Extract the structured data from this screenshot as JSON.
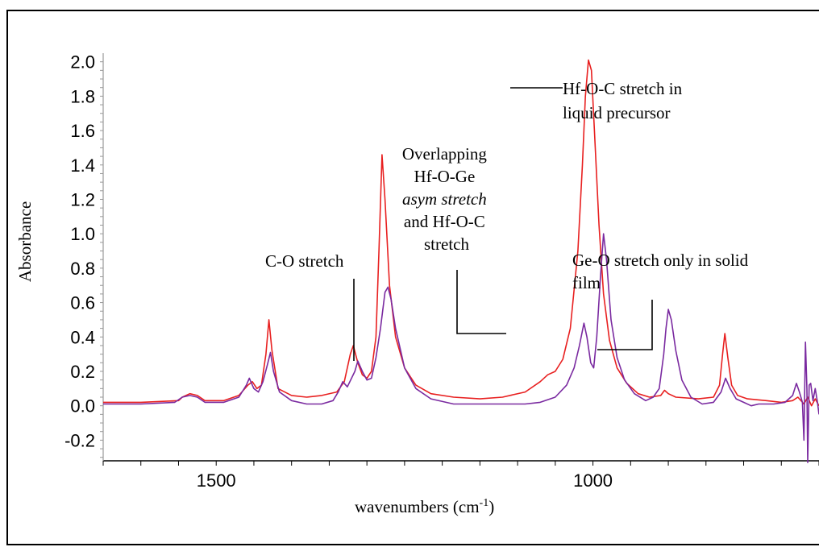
{
  "chart_data": {
    "type": "line",
    "xlabel": "wavenumbers (cm",
    "xlabel_sup": "-1",
    "xlabel_end": ")",
    "ylabel": "Absorbance",
    "xlim": [
      1650,
      700
    ],
    "ylim": [
      -0.32,
      2.05
    ],
    "x_ticks": [
      1500,
      1000
    ],
    "y_ticks": [
      -0.2,
      0.0,
      0.2,
      0.4,
      0.6,
      0.8,
      1.0,
      1.2,
      1.4,
      1.6,
      1.8,
      2.0
    ],
    "y_tick_labels": [
      "-0.2",
      "0.0",
      "0.2",
      "0.4",
      "0.6",
      "0.8",
      "1.0",
      "1.2",
      "1.4",
      "1.6",
      "1.8",
      "2.0"
    ],
    "grid": false,
    "legend": "none",
    "series": [
      {
        "color": "#e82020",
        "points": [
          [
            1650,
            0.02
          ],
          [
            1600,
            0.02
          ],
          [
            1550,
            0.03
          ],
          [
            1545,
            0.05
          ],
          [
            1535,
            0.07
          ],
          [
            1525,
            0.06
          ],
          [
            1515,
            0.03
          ],
          [
            1490,
            0.03
          ],
          [
            1470,
            0.06
          ],
          [
            1458,
            0.12
          ],
          [
            1452,
            0.14
          ],
          [
            1446,
            0.1
          ],
          [
            1440,
            0.12
          ],
          [
            1434,
            0.3
          ],
          [
            1430,
            0.5
          ],
          [
            1426,
            0.32
          ],
          [
            1418,
            0.1
          ],
          [
            1400,
            0.06
          ],
          [
            1380,
            0.05
          ],
          [
            1360,
            0.06
          ],
          [
            1340,
            0.08
          ],
          [
            1330,
            0.14
          ],
          [
            1322,
            0.3
          ],
          [
            1318,
            0.35
          ],
          [
            1312,
            0.25
          ],
          [
            1306,
            0.18
          ],
          [
            1300,
            0.16
          ],
          [
            1294,
            0.2
          ],
          [
            1288,
            0.4
          ],
          [
            1284,
            0.9
          ],
          [
            1280,
            1.46
          ],
          [
            1276,
            1.2
          ],
          [
            1270,
            0.7
          ],
          [
            1262,
            0.4
          ],
          [
            1250,
            0.22
          ],
          [
            1235,
            0.12
          ],
          [
            1215,
            0.07
          ],
          [
            1185,
            0.05
          ],
          [
            1150,
            0.04
          ],
          [
            1120,
            0.05
          ],
          [
            1090,
            0.08
          ],
          [
            1070,
            0.14
          ],
          [
            1060,
            0.18
          ],
          [
            1050,
            0.2
          ],
          [
            1040,
            0.27
          ],
          [
            1030,
            0.45
          ],
          [
            1020,
            0.9
          ],
          [
            1014,
            1.4
          ],
          [
            1010,
            1.8
          ],
          [
            1006,
            2.01
          ],
          [
            1002,
            1.95
          ],
          [
            998,
            1.6
          ],
          [
            992,
            1.05
          ],
          [
            986,
            0.65
          ],
          [
            978,
            0.38
          ],
          [
            968,
            0.22
          ],
          [
            955,
            0.13
          ],
          [
            940,
            0.07
          ],
          [
            925,
            0.05
          ],
          [
            910,
            0.06
          ],
          [
            905,
            0.09
          ],
          [
            900,
            0.07
          ],
          [
            890,
            0.05
          ],
          [
            860,
            0.04
          ],
          [
            840,
            0.05
          ],
          [
            832,
            0.12
          ],
          [
            828,
            0.3
          ],
          [
            825,
            0.42
          ],
          [
            821,
            0.28
          ],
          [
            816,
            0.12
          ],
          [
            808,
            0.06
          ],
          [
            795,
            0.04
          ],
          [
            770,
            0.03
          ],
          [
            750,
            0.02
          ],
          [
            735,
            0.03
          ],
          [
            728,
            0.05
          ],
          [
            720,
            0.01
          ],
          [
            715,
            0.05
          ],
          [
            710,
            0.0
          ],
          [
            705,
            0.04
          ],
          [
            700,
            0.0
          ]
        ]
      },
      {
        "color": "#7a2aa0",
        "points": [
          [
            1650,
            0.01
          ],
          [
            1600,
            0.01
          ],
          [
            1555,
            0.02
          ],
          [
            1545,
            0.05
          ],
          [
            1535,
            0.06
          ],
          [
            1525,
            0.05
          ],
          [
            1515,
            0.02
          ],
          [
            1490,
            0.02
          ],
          [
            1470,
            0.05
          ],
          [
            1460,
            0.12
          ],
          [
            1456,
            0.16
          ],
          [
            1450,
            0.1
          ],
          [
            1444,
            0.08
          ],
          [
            1438,
            0.14
          ],
          [
            1432,
            0.24
          ],
          [
            1428,
            0.31
          ],
          [
            1424,
            0.2
          ],
          [
            1416,
            0.08
          ],
          [
            1400,
            0.03
          ],
          [
            1380,
            0.01
          ],
          [
            1360,
            0.01
          ],
          [
            1345,
            0.03
          ],
          [
            1338,
            0.08
          ],
          [
            1332,
            0.14
          ],
          [
            1326,
            0.11
          ],
          [
            1316,
            0.2
          ],
          [
            1312,
            0.26
          ],
          [
            1306,
            0.2
          ],
          [
            1300,
            0.15
          ],
          [
            1294,
            0.16
          ],
          [
            1288,
            0.28
          ],
          [
            1282,
            0.45
          ],
          [
            1276,
            0.66
          ],
          [
            1272,
            0.69
          ],
          [
            1268,
            0.62
          ],
          [
            1262,
            0.45
          ],
          [
            1250,
            0.22
          ],
          [
            1235,
            0.1
          ],
          [
            1215,
            0.04
          ],
          [
            1185,
            0.01
          ],
          [
            1150,
            0.01
          ],
          [
            1120,
            0.01
          ],
          [
            1090,
            0.01
          ],
          [
            1070,
            0.02
          ],
          [
            1050,
            0.05
          ],
          [
            1035,
            0.12
          ],
          [
            1025,
            0.22
          ],
          [
            1018,
            0.35
          ],
          [
            1012,
            0.48
          ],
          [
            1008,
            0.4
          ],
          [
            1003,
            0.25
          ],
          [
            999,
            0.22
          ],
          [
            995,
            0.4
          ],
          [
            990,
            0.75
          ],
          [
            986,
            1.0
          ],
          [
            982,
            0.85
          ],
          [
            976,
            0.5
          ],
          [
            968,
            0.28
          ],
          [
            958,
            0.15
          ],
          [
            945,
            0.07
          ],
          [
            930,
            0.03
          ],
          [
            920,
            0.05
          ],
          [
            912,
            0.1
          ],
          [
            906,
            0.3
          ],
          [
            903,
            0.45
          ],
          [
            900,
            0.56
          ],
          [
            896,
            0.5
          ],
          [
            890,
            0.32
          ],
          [
            882,
            0.15
          ],
          [
            870,
            0.05
          ],
          [
            855,
            0.01
          ],
          [
            840,
            0.02
          ],
          [
            830,
            0.08
          ],
          [
            824,
            0.16
          ],
          [
            818,
            0.1
          ],
          [
            810,
            0.04
          ],
          [
            800,
            0.02
          ],
          [
            790,
            0.0
          ],
          [
            780,
            0.01
          ],
          [
            760,
            0.01
          ],
          [
            745,
            0.02
          ],
          [
            735,
            0.06
          ],
          [
            730,
            0.13
          ],
          [
            726,
            0.08
          ],
          [
            722,
            0.02
          ],
          [
            720,
            -0.2
          ],
          [
            718,
            0.37
          ],
          [
            716,
            0.1
          ],
          [
            715,
            -0.33
          ],
          [
            713,
            0.12
          ],
          [
            711,
            0.13
          ],
          [
            708,
            0.03
          ],
          [
            705,
            0.1
          ],
          [
            702,
            0.02
          ],
          [
            700,
            -0.05
          ]
        ]
      }
    ],
    "annotations": [
      {
        "lines": [
          "C-O stretch"
        ]
      },
      {
        "lines": [
          "Overlapping",
          "Hf-O-Ge",
          "asym stretch",
          "and Hf-O-C",
          "stretch"
        ]
      },
      {
        "lines": [
          "Hf-O-C stretch in",
          "liquid precursor"
        ]
      },
      {
        "lines": [
          "Ge-O stretch only in solid",
          "film"
        ]
      }
    ]
  }
}
